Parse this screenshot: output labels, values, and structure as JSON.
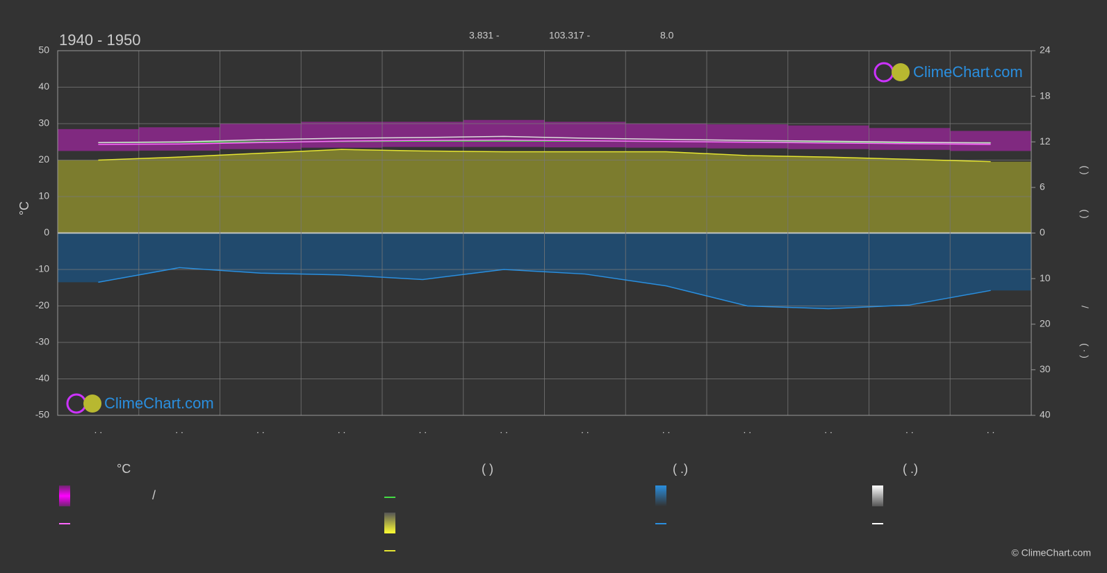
{
  "chart_data": {
    "type": "line",
    "title": "1940 - 1950",
    "header": [
      "3.831 -",
      "103.317 -",
      "8.0"
    ],
    "ylabel": "°C",
    "right_axis_labels": [
      "(   )",
      "(   )",
      "/",
      "( · )"
    ],
    "categories": [
      ". .",
      ". .",
      ". .",
      ". .",
      ". .",
      ". .",
      ". .",
      ". .",
      ". .",
      ". .",
      ". .",
      ". ."
    ],
    "ylim": [
      -50,
      50
    ],
    "yticks": [
      -50,
      -40,
      -30,
      -20,
      -10,
      0,
      10,
      20,
      30,
      40,
      50
    ],
    "y2lim": [
      0,
      24
    ],
    "y2ticks": [
      0,
      6,
      12,
      18,
      24
    ],
    "y3lim": [
      0,
      40
    ],
    "y3ticks": [
      10,
      20,
      30,
      40
    ],
    "grid": true,
    "band": {
      "color": "#c020c0",
      "low": [
        22.5,
        22.6,
        23.0,
        23.4,
        23.6,
        23.6,
        23.5,
        23.4,
        23.2,
        23.0,
        22.8,
        22.5
      ],
      "high": [
        28.5,
        29.0,
        30.0,
        30.5,
        30.5,
        31.0,
        30.5,
        30.0,
        29.8,
        29.5,
        28.8,
        28.0
      ]
    },
    "series": [
      {
        "color": "#e6e632",
        "axis": "y2",
        "fill": "#8a8a2e",
        "values": [
          9.6,
          10.0,
          10.5,
          11.0,
          10.8,
          10.7,
          10.7,
          10.7,
          10.2,
          10.0,
          9.7,
          9.4
        ]
      },
      {
        "color": "#2a8fdf",
        "axis": "y3",
        "fill": "#1f4f78",
        "values": [
          10.8,
          7.6,
          8.8,
          9.2,
          10.2,
          8.0,
          9.0,
          11.6,
          16.0,
          16.6,
          15.8,
          12.6
        ]
      },
      {
        "color": "#44dd44",
        "axis": "y2",
        "values": [
          11.9,
          11.95,
          12.0,
          12.05,
          12.1,
          12.1,
          12.1,
          12.05,
          12.0,
          11.95,
          11.9,
          11.9
        ]
      },
      {
        "color": "#ff66ff",
        "axis": "y",
        "values": [
          24.3,
          24.4,
          24.8,
          25.2,
          25.4,
          25.5,
          25.3,
          25.1,
          24.9,
          24.7,
          24.5,
          24.3
        ]
      },
      {
        "color": "#dddddd",
        "axis": "y",
        "values": [
          24.8,
          25.0,
          25.6,
          26.0,
          26.2,
          26.5,
          26.0,
          25.7,
          25.4,
          25.2,
          24.9,
          24.7
        ]
      }
    ],
    "legend_headers": [
      "°C",
      "(          )",
      "(   .)",
      "(   .)"
    ],
    "legend_text": "/",
    "logo": "ClimeChart.com",
    "copyright": "© ClimeChart.com"
  }
}
